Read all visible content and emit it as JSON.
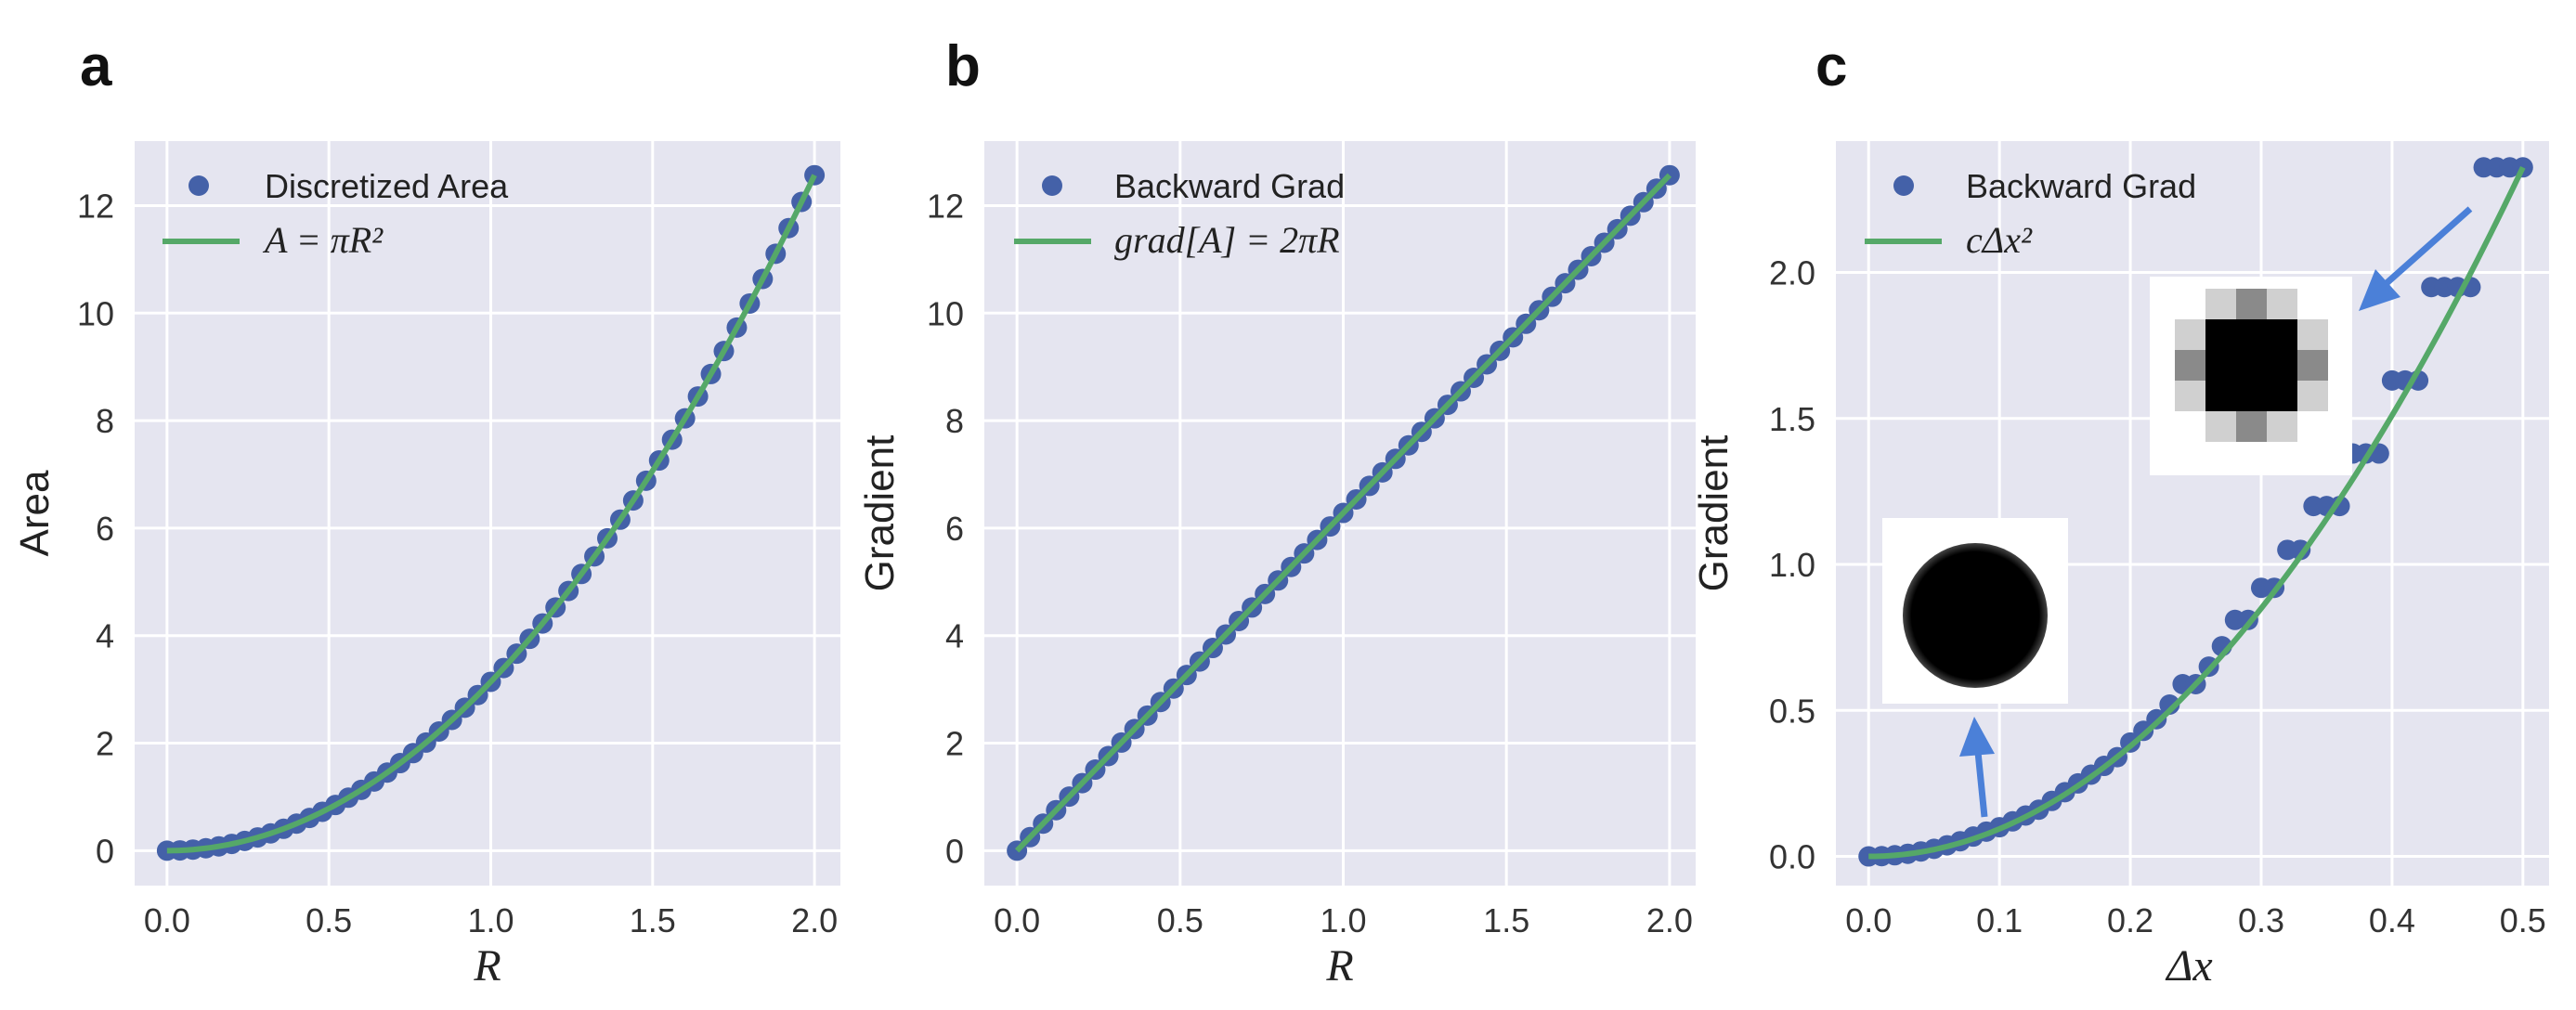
{
  "colors": {
    "bg": "#e5e5f0",
    "grid": "#ffffff",
    "dots": "#4461a8",
    "line": "#55a868",
    "arrow": "#4b80d8"
  },
  "chart_data": [
    {
      "panel": "a",
      "type": "scatter",
      "xlabel": "R",
      "ylabel": "Area",
      "xlim": [
        -0.1,
        2.08
      ],
      "ylim": [
        -0.65,
        13.2
      ],
      "xticks": [
        0.0,
        0.5,
        1.0,
        1.5,
        2.0
      ],
      "xtick_labels": [
        "0.0",
        "0.5",
        "1.0",
        "1.5",
        "2.0"
      ],
      "yticks": [
        0,
        2,
        4,
        6,
        8,
        10,
        12
      ],
      "ytick_labels": [
        "0",
        "2",
        "4",
        "6",
        "8",
        "10",
        "12"
      ],
      "legend": {
        "loc": "upper left",
        "dots_label": "Discretized Area",
        "line_label": "A = πR²"
      },
      "series": [
        {
          "name": "Discretized Area",
          "kind": "dots",
          "formula": "pi*R^2",
          "x_start": 0.0,
          "x_end": 2.0,
          "step": 0.04
        },
        {
          "name": "A = πR²",
          "kind": "line",
          "formula": "pi*R^2",
          "x_start": 0.0,
          "x_end": 2.0
        }
      ]
    },
    {
      "panel": "b",
      "type": "scatter",
      "xlabel": "R",
      "ylabel": "Gradient",
      "xlim": [
        -0.1,
        2.08
      ],
      "ylim": [
        -0.65,
        13.2
      ],
      "xticks": [
        0.0,
        0.5,
        1.0,
        1.5,
        2.0
      ],
      "xtick_labels": [
        "0.0",
        "0.5",
        "1.0",
        "1.5",
        "2.0"
      ],
      "yticks": [
        0,
        2,
        4,
        6,
        8,
        10,
        12
      ],
      "ytick_labels": [
        "0",
        "2",
        "4",
        "6",
        "8",
        "10",
        "12"
      ],
      "legend": {
        "loc": "upper left",
        "dots_label": "Backward Grad",
        "line_label": "grad[A] = 2πR"
      },
      "series": [
        {
          "name": "Backward Grad",
          "kind": "dots",
          "formula": "2*pi*R",
          "x_start": 0.0,
          "x_end": 2.0,
          "step": 0.04
        },
        {
          "name": "grad[A] = 2πR",
          "kind": "line",
          "formula": "2*pi*R",
          "x_start": 0.0,
          "x_end": 2.0
        }
      ]
    },
    {
      "panel": "c",
      "type": "scatter",
      "xlabel": "Δx",
      "ylabel": "Gradient",
      "xlim": [
        -0.025,
        0.52
      ],
      "ylim": [
        -0.1,
        2.45
      ],
      "xticks": [
        0.0,
        0.1,
        0.2,
        0.3,
        0.4,
        0.5
      ],
      "xtick_labels": [
        "0.0",
        "0.1",
        "0.2",
        "0.3",
        "0.4",
        "0.5"
      ],
      "yticks": [
        0.0,
        0.5,
        1.0,
        1.5,
        2.0
      ],
      "ytick_labels": [
        "0.0",
        "0.5",
        "1.0",
        "1.5",
        "2.0"
      ],
      "legend": {
        "loc": "upper left",
        "dots_label": "Backward Grad",
        "line_label": "cΔx²"
      },
      "series": [
        {
          "name": "Backward Grad",
          "kind": "dots",
          "x": [
            0.0,
            0.01,
            0.02,
            0.03,
            0.04,
            0.05,
            0.06,
            0.07,
            0.08,
            0.09,
            0.1,
            0.11,
            0.12,
            0.13,
            0.14,
            0.15,
            0.16,
            0.17,
            0.18,
            0.19,
            0.2,
            0.21,
            0.22,
            0.23,
            0.24,
            0.25,
            0.26,
            0.27,
            0.28,
            0.29,
            0.3,
            0.31,
            0.32,
            0.33,
            0.34,
            0.35,
            0.36,
            0.37,
            0.38,
            0.39,
            0.4,
            0.41,
            0.42,
            0.43,
            0.44,
            0.45,
            0.46,
            0.47,
            0.48,
            0.49,
            0.5
          ],
          "y": [
            0.0,
            0.001,
            0.004,
            0.009,
            0.017,
            0.026,
            0.038,
            0.052,
            0.068,
            0.085,
            0.1,
            0.12,
            0.14,
            0.16,
            0.19,
            0.22,
            0.25,
            0.28,
            0.31,
            0.34,
            0.39,
            0.43,
            0.47,
            0.52,
            0.59,
            0.59,
            0.65,
            0.72,
            0.81,
            0.81,
            0.92,
            0.92,
            1.05,
            1.05,
            1.2,
            1.2,
            1.2,
            1.38,
            1.38,
            1.38,
            1.63,
            1.63,
            1.63,
            1.95,
            1.95,
            1.95,
            1.95,
            2.36,
            2.36,
            2.36,
            2.36
          ]
        },
        {
          "name": "cΔx²",
          "kind": "line",
          "formula": "9.44*x^2",
          "x_start": 0.0,
          "x_end": 0.5
        }
      ],
      "insets": [
        {
          "name": "circle-large-inset",
          "description_only": true,
          "value_x": 0.1,
          "value_y": 0.1
        },
        {
          "name": "circle-coarse-inset",
          "description_only": true,
          "value_x": 0.48,
          "value_y": 2.3
        }
      ]
    }
  ],
  "panels": {
    "a": {
      "letter": "a"
    },
    "b": {
      "letter": "b"
    },
    "c": {
      "letter": "c"
    }
  }
}
